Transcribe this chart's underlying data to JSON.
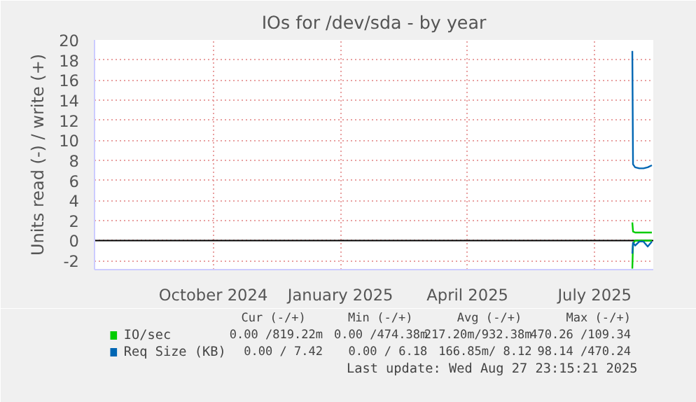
{
  "chart_data": {
    "type": "line",
    "title": "IOs for /dev/sda - by year",
    "ylabel": "Units read (-) / write (+)",
    "xlim": [
      "2024-07-23",
      "2025-08-27"
    ],
    "xticks": [
      {
        "value": "2024-10-16",
        "label": "October 2024"
      },
      {
        "value": "2025-01-15",
        "label": "January 2025"
      },
      {
        "value": "2025-04-16",
        "label": "April 2025"
      },
      {
        "value": "2025-07-16",
        "label": "July 2025"
      }
    ],
    "ylim": [
      -2.9,
      20
    ],
    "yticks": [
      -2,
      0,
      2,
      4,
      6,
      8,
      10,
      12,
      14,
      16,
      18,
      20
    ],
    "grid": true,
    "legend": "bottom",
    "series": [
      {
        "name": "IO/sec",
        "color": "#00cc00",
        "x": [
          "2025-08-12",
          "2025-08-12T12:00",
          "2025-08-14",
          "2025-08-17",
          "2025-08-20",
          "2025-08-23",
          "2025-08-26"
        ],
        "values": [
          1.8,
          0.9,
          0.8,
          0.8,
          0.8,
          0.8,
          0.8
        ]
      },
      {
        "color": "#00cc00",
        "x": [
          "2025-08-12",
          "2025-08-12T12:00",
          "2025-08-14",
          "2025-08-17",
          "2025-08-20",
          "2025-08-23",
          "2025-08-26"
        ],
        "values": [
          -2.8,
          -0.3,
          0,
          0,
          0,
          0,
          0
        ]
      },
      {
        "name": "Req Size (KB)",
        "color": "#0066b3",
        "x": [
          "2025-08-12",
          "2025-08-12T12:00",
          "2025-08-14",
          "2025-08-17",
          "2025-08-20",
          "2025-08-23",
          "2025-08-26"
        ],
        "values": [
          18.9,
          7.6,
          7.3,
          7.2,
          7.2,
          7.3,
          7.5
        ]
      },
      {
        "color": "#0066b3",
        "x": [
          "2025-08-12",
          "2025-08-12T12:00",
          "2025-08-14",
          "2025-08-17",
          "2025-08-20",
          "2025-08-23",
          "2025-08-26"
        ],
        "values": [
          -1.3,
          -0.2,
          -0.5,
          -0.1,
          -0.1,
          -0.6,
          -0.1
        ]
      }
    ],
    "ref_lines": [
      {
        "axis": "y",
        "value": 0,
        "color": "#000000"
      }
    ],
    "annotations": [
      "Cur (-/+)",
      "Min (-/+)",
      "Avg (-/+)",
      "Max (-/+)",
      "0.00 /819.22m",
      "0.00 /474.38m",
      "217.20m/932.38m",
      "470.26 /109.34",
      "0.00 / 7.42",
      "0.00 / 6.18",
      "166.85m/ 8.12",
      "98.14 /470.24",
      "Last update: Wed Aug 27 23:15:21 2025"
    ]
  }
}
